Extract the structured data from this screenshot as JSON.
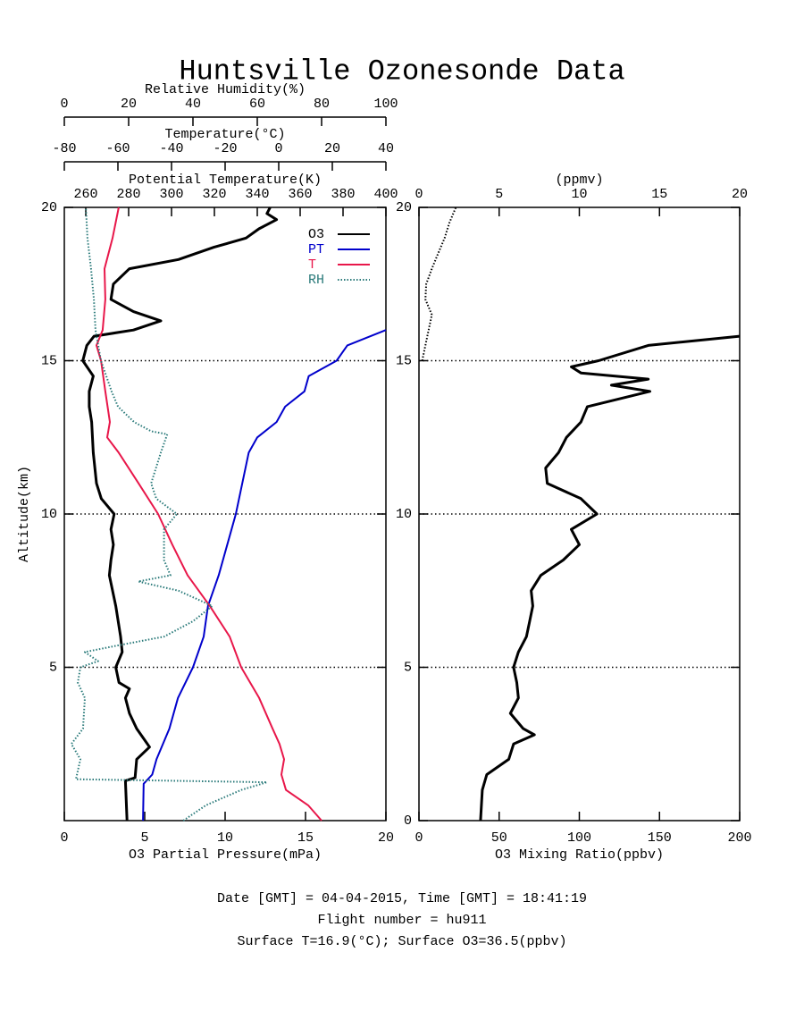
{
  "title": "Huntsville Ozonesonde Data",
  "footer": [
    "Date [GMT] = 04-04-2015,  Time [GMT] = 18:41:19",
    "Flight number = hu911",
    "Surface T=16.9(°C); Surface O3=36.5(ppbv)"
  ],
  "chart_data": [
    {
      "type": "line",
      "ylabel": "Altitude(km)",
      "ylim": [
        0,
        20
      ],
      "yticks": [
        5,
        10,
        15,
        20
      ],
      "grid": true,
      "legend": "upper right",
      "xlabel": "O3 Partial Pressure(mPa)",
      "xlim": [
        0,
        20
      ],
      "xticks": [
        0,
        5,
        10,
        15,
        20
      ],
      "x2label": "Potential Temperature(K)",
      "x2lim": [
        250,
        400
      ],
      "x2ticks": [
        260,
        280,
        300,
        320,
        340,
        360,
        380,
        400
      ],
      "x3label": "Temperature(°C)",
      "x3lim": [
        -80,
        40
      ],
      "x3ticks": [
        -80,
        -60,
        -40,
        -20,
        0,
        20,
        40
      ],
      "x4label": "Relative Humidity(%)",
      "x4lim": [
        0,
        100
      ],
      "x4ticks": [
        0,
        20,
        40,
        60,
        80,
        100
      ],
      "series": [
        {
          "name": "O3",
          "color": "#000000",
          "axis": "x",
          "linestyle": "solid",
          "altitudes": [
            0,
            1.3,
            1.4,
            2,
            2.4,
            2.7,
            3,
            3.5,
            4,
            4.3,
            4.5,
            5,
            5.5,
            6,
            7,
            8,
            8.5,
            9,
            9.5,
            10,
            10.5,
            11,
            12,
            13,
            13.5,
            14,
            14.5,
            15,
            15.5,
            15.8,
            16,
            16.3,
            16.6,
            17,
            17.5,
            18,
            18.3,
            18.7,
            19,
            19.3,
            19.6,
            19.8,
            20
          ],
          "values": [
            3.9,
            3.8,
            4.4,
            4.5,
            5.3,
            4.9,
            4.5,
            4.05,
            3.8,
            4.05,
            3.4,
            3.2,
            3.6,
            3.5,
            3.2,
            2.8,
            2.9,
            3.05,
            2.9,
            3.1,
            2.3,
            2.0,
            1.8,
            1.7,
            1.55,
            1.55,
            1.8,
            1.15,
            1.4,
            1.85,
            4.3,
            6.0,
            4.3,
            2.9,
            3.05,
            4.05,
            7.1,
            9.3,
            11.3,
            12.1,
            13.2,
            12.6,
            12.8
          ]
        },
        {
          "name": "PT",
          "color": "#0000cc",
          "axis": "x2",
          "linestyle": "solid",
          "altitudes": [
            0,
            1.2,
            1.5,
            2,
            3,
            4,
            5,
            6,
            7,
            8,
            9,
            10,
            11,
            12,
            12.5,
            13,
            13.5,
            14,
            14.5,
            15,
            15.5,
            16
          ],
          "values": [
            286.7,
            287,
            291,
            293,
            299,
            303,
            310,
            315,
            317,
            322,
            326,
            330,
            333,
            336,
            340,
            349,
            353,
            362,
            364,
            377,
            382,
            400
          ]
        },
        {
          "name": "T",
          "color": "#e8174a",
          "axis": "x3",
          "linestyle": "solid",
          "altitudes": [
            0,
            0.5,
            1,
            1.5,
            2,
            2.5,
            3,
            4,
            5,
            6,
            7,
            8,
            9,
            10,
            11,
            12,
            12.5,
            13,
            14,
            15,
            15.5,
            16,
            17,
            18,
            19,
            20
          ],
          "values": [
            16,
            11,
            2.7,
            1,
            2,
            0.3,
            -2.3,
            -7.3,
            -14,
            -18.3,
            -25.7,
            -34,
            -39.7,
            -45,
            -52.3,
            -59.7,
            -64,
            -63,
            -64.7,
            -66.3,
            -68,
            -65.7,
            -64.7,
            -65,
            -62,
            -59.7
          ]
        },
        {
          "name": "RH",
          "color": "#2a7a7a",
          "axis": "x4",
          "linestyle": "dotted",
          "altitudes": [
            0,
            0.5,
            1,
            1.25,
            1.35,
            2,
            2.5,
            3,
            4,
            4.5,
            5,
            5.2,
            5.5,
            5.7,
            6,
            6.5,
            7,
            7.5,
            7.8,
            8,
            8.5,
            9,
            9.5,
            10,
            10.5,
            11,
            12,
            12.6,
            12.7,
            13,
            13.5,
            14,
            15,
            16,
            17,
            18,
            19,
            20
          ],
          "values": [
            37,
            44,
            55,
            63,
            3.6,
            5,
            2.2,
            5.8,
            6.4,
            4.2,
            5,
            10.5,
            6.4,
            16,
            31,
            40,
            46,
            35.5,
            23,
            33,
            31,
            31,
            31,
            35,
            28.6,
            27,
            30,
            32,
            27,
            21.7,
            16.7,
            14.7,
            11.4,
            9.7,
            9.2,
            8.3,
            7.2,
            6.7
          ]
        }
      ]
    },
    {
      "type": "line",
      "ylim": [
        0,
        20
      ],
      "yticks": [
        0,
        5,
        10,
        15,
        20
      ],
      "grid": true,
      "xlabel": "O3 Mixing Ratio(ppbv)",
      "xlim": [
        0,
        200
      ],
      "xticks": [
        0,
        50,
        100,
        150,
        200
      ],
      "x2label": "(ppmv)",
      "x2lim": [
        0,
        20
      ],
      "x2ticks": [
        0,
        5,
        10,
        15,
        20
      ],
      "series": [
        {
          "color": "#000000",
          "axis": "x",
          "linestyle": "solid",
          "altitudes": [
            0,
            1,
            1.5,
            2,
            2.5,
            2.8,
            3,
            3.5,
            4,
            4.5,
            5,
            5.5,
            6,
            6.5,
            7,
            7.5,
            8,
            8.5,
            9,
            9.5,
            10,
            10.5,
            11,
            11.5,
            12,
            12.5,
            13,
            13.5,
            14,
            14.2,
            14.4,
            14.6,
            14.8,
            15,
            15.5,
            15.8
          ],
          "values": [
            38.4,
            39.5,
            42.3,
            56,
            59,
            72,
            65,
            57,
            62,
            61,
            59,
            62,
            67,
            69,
            71,
            70,
            76,
            90,
            100,
            95,
            111,
            101,
            80,
            79,
            87,
            92,
            101,
            105,
            144,
            120,
            143,
            101,
            95,
            112,
            143,
            200
          ]
        },
        {
          "color": "#000000",
          "axis": "x2",
          "linestyle": "dotted",
          "altitudes": [
            15,
            16,
            16.5,
            17,
            17.5,
            18,
            18.5,
            19,
            19.5,
            20
          ],
          "values": [
            0.2,
            0.6,
            0.8,
            0.4,
            0.45,
            0.8,
            1.2,
            1.6,
            1.9,
            2.3
          ]
        }
      ]
    }
  ]
}
